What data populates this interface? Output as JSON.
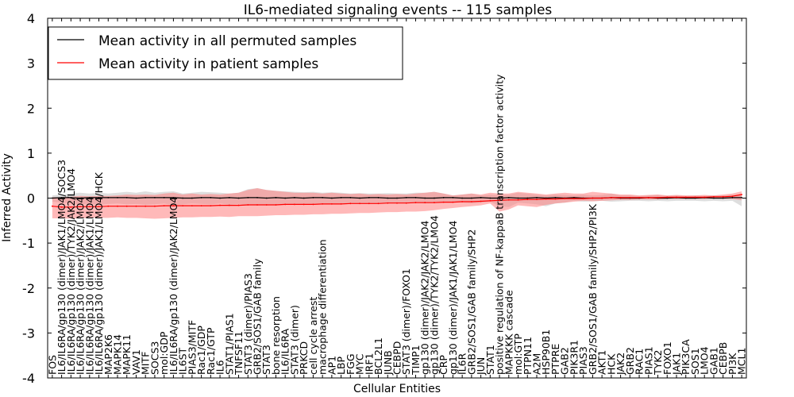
{
  "chart_data": {
    "type": "line",
    "title": "IL6-mediated signaling events -- 115 samples",
    "xlabel": "Cellular Entities",
    "ylabel": "Inferred Activity",
    "ylim": [
      -4,
      4
    ],
    "yticks": [
      -4,
      -3,
      -2,
      -1,
      0,
      1,
      2,
      3,
      4
    ],
    "legend_position": "top-left",
    "categories": [
      "FOS",
      "IL6/IL6RA/gp130 (dimer)/JAK1/LMO4/SOCS3",
      "IL6/IL6RA/gp130 (dimer)/TYK2/JAK2/LMO4",
      "IL6/IL6RA/gp130 (dimer)/JAK2/LMO4",
      "IL6/IL6RA/gp130 (dimer)/JAK1/LMO4",
      "IL6/IL6RA/gp130 (dimer)/JAK1/LMO4/HCK",
      "MAP2K6",
      "MAPK14",
      "MAPK11",
      "VAV1",
      "MITF",
      "SOCS3",
      "mol:GDP",
      "IL6/IL6RA/gp130 (dimer)/JAK2/LMO4",
      "IL6ST",
      "PIAS3/MITF",
      "Rac1/GDP",
      "Rac1/GTP",
      "IL6",
      "STAT1/PIAS1",
      "TNFSF11",
      "STAT3 (dimer)/PIAS3",
      "GRB2/SOS1/GAB family",
      "STAT3",
      "bone resorption",
      "IL6/IL6RA",
      "STAT3 (dimer)",
      "PRKCD",
      "cell cycle arrest",
      "macrophage differentiation",
      "AP1",
      "LBP",
      "FGG",
      "MYC",
      "IRF1",
      "BCL2L1",
      "JUNB",
      "CEBPD",
      "STAT3 (dimer)/FOXO1",
      "TIMP1",
      "gp130 (dimer)/JAK2/JAK2/LMO4",
      "gp130 (dimer)/TYK2/TYK2/LMO4",
      "CRP",
      "gp130 (dimer)/JAK1/JAK1/LMO4",
      "IL6R",
      "GRB2/SOS1/GAB family/SHP2",
      "JUN",
      "STAT1",
      "positive regulation of NF-kappaB transcription factor activity",
      "MAPKKK cascade",
      "mol:GTP",
      "PTPN11",
      "A2M",
      "HSP90B1",
      "PTPRE",
      "GAB2",
      "PIK3R1",
      "PIAS3",
      "GRB2/SOS1/GAB family/SHP2/PI3K",
      "AKT1",
      "HCK",
      "JAK2",
      "GRB2",
      "RAC1",
      "PIAS1",
      "TYK2",
      "FOXO1",
      "JAK1",
      "PIK3CA",
      "SOS1",
      "LMO4",
      "GAB1",
      "CEBPB",
      "PI3K",
      "MCL1"
    ],
    "series": [
      {
        "name": "Mean activity in all permuted samples",
        "color": "#000000",
        "band_color": "#c8c8c8",
        "values": [
          0.0,
          0.01,
          0.01,
          0.0,
          0.01,
          0.01,
          0.01,
          0.01,
          0.01,
          0.0,
          0.01,
          0.01,
          0.01,
          0.01,
          0.0,
          0.0,
          0.01,
          0.01,
          0.0,
          0.01,
          0.0,
          0.01,
          0.01,
          0.0,
          0.01,
          0.0,
          0.01,
          0.0,
          0.01,
          0.01,
          0.0,
          0.01,
          0.01,
          0.0,
          0.01,
          0.01,
          0.0,
          0.0,
          0.01,
          0.01,
          0.0,
          0.0,
          0.01,
          0.01,
          0.0,
          0.0,
          0.01,
          0.0,
          0.0,
          0.01,
          0.0,
          0.0,
          0.01,
          0.0,
          0.01,
          0.0,
          0.01,
          0.0,
          0.0,
          0.0,
          0.01,
          0.0,
          0.0,
          0.0,
          0.01,
          0.0,
          0.0,
          0.01,
          0.0,
          0.0,
          0.01,
          0.0,
          0.0,
          0.01,
          0.01
        ],
        "upper": [
          0.06,
          0.08,
          0.1,
          0.12,
          0.1,
          0.12,
          0.1,
          0.12,
          0.14,
          0.12,
          0.15,
          0.12,
          0.14,
          0.15,
          0.1,
          0.12,
          0.14,
          0.13,
          0.12,
          0.1,
          0.12,
          0.2,
          0.22,
          0.18,
          0.16,
          0.15,
          0.14,
          0.13,
          0.14,
          0.12,
          0.13,
          0.12,
          0.1,
          0.11,
          0.1,
          0.1,
          0.11,
          0.1,
          0.1,
          0.12,
          0.12,
          0.14,
          0.1,
          0.06,
          0.08,
          0.1,
          0.06,
          0.08,
          0.07,
          0.08,
          0.12,
          0.1,
          0.08,
          0.06,
          0.08,
          0.07,
          0.06,
          0.08,
          0.06,
          0.07,
          0.1,
          0.06,
          0.06,
          0.05,
          0.06,
          0.07,
          0.05,
          0.06,
          0.05,
          0.06,
          0.05,
          0.06,
          0.06,
          0.07,
          0.08
        ],
        "lower": [
          -0.08,
          -0.1,
          -0.12,
          -0.14,
          -0.12,
          -0.15,
          -0.13,
          -0.12,
          -0.14,
          -0.13,
          -0.15,
          -0.14,
          -0.12,
          -0.16,
          -0.14,
          -0.12,
          -0.13,
          -0.14,
          -0.12,
          -0.15,
          -0.13,
          -0.16,
          -0.16,
          -0.14,
          -0.15,
          -0.14,
          -0.14,
          -0.13,
          -0.13,
          -0.12,
          -0.13,
          -0.12,
          -0.12,
          -0.11,
          -0.12,
          -0.11,
          -0.1,
          -0.12,
          -0.1,
          -0.1,
          -0.12,
          -0.1,
          -0.08,
          -0.08,
          -0.1,
          -0.12,
          -0.1,
          -0.08,
          -0.18,
          -0.2,
          -0.1,
          -0.12,
          -0.14,
          -0.18,
          -0.12,
          -0.1,
          -0.06,
          -0.08,
          -0.07,
          -0.06,
          -0.08,
          -0.07,
          -0.06,
          -0.06,
          -0.07,
          -0.06,
          -0.07,
          -0.06,
          -0.06,
          -0.06,
          -0.07,
          -0.06,
          -0.07,
          -0.06,
          -0.18
        ]
      },
      {
        "name": "Mean activity in patient samples",
        "color": "#ff0000",
        "band_color": "#ff7f7f",
        "values": [
          -0.18,
          -0.2,
          -0.2,
          -0.19,
          -0.19,
          -0.19,
          -0.18,
          -0.18,
          -0.18,
          -0.18,
          -0.18,
          -0.18,
          -0.17,
          -0.17,
          -0.17,
          -0.17,
          -0.17,
          -0.17,
          -0.16,
          -0.16,
          -0.16,
          -0.15,
          -0.15,
          -0.15,
          -0.15,
          -0.14,
          -0.14,
          -0.14,
          -0.14,
          -0.13,
          -0.13,
          -0.13,
          -0.12,
          -0.12,
          -0.12,
          -0.12,
          -0.11,
          -0.11,
          -0.11,
          -0.1,
          -0.1,
          -0.1,
          -0.09,
          -0.09,
          -0.08,
          -0.08,
          -0.07,
          -0.06,
          -0.05,
          -0.04,
          -0.04,
          -0.03,
          -0.03,
          -0.02,
          -0.02,
          -0.01,
          -0.01,
          -0.01,
          0.0,
          0.0,
          0.01,
          0.01,
          0.01,
          0.01,
          0.01,
          0.01,
          0.02,
          0.02,
          0.02,
          0.02,
          0.02,
          0.03,
          0.03,
          0.04,
          0.08
        ],
        "upper": [
          0.02,
          0.02,
          0.03,
          0.05,
          0.04,
          0.05,
          0.05,
          0.06,
          0.08,
          0.07,
          0.08,
          0.07,
          0.1,
          0.12,
          0.08,
          0.1,
          0.08,
          0.09,
          0.08,
          0.1,
          0.12,
          0.18,
          0.22,
          0.18,
          0.16,
          0.14,
          0.12,
          0.12,
          0.12,
          0.1,
          0.12,
          0.1,
          0.09,
          0.1,
          0.08,
          0.09,
          0.08,
          0.09,
          0.08,
          0.1,
          0.12,
          0.14,
          0.1,
          0.06,
          0.08,
          0.1,
          0.08,
          0.12,
          0.1,
          0.1,
          0.14,
          0.12,
          0.1,
          0.08,
          0.1,
          0.12,
          0.1,
          0.1,
          0.14,
          0.12,
          0.1,
          0.08,
          0.08,
          0.06,
          0.07,
          0.08,
          0.06,
          0.07,
          0.06,
          0.06,
          0.07,
          0.06,
          0.08,
          0.1,
          0.15
        ],
        "lower": [
          -0.45,
          -0.45,
          -0.46,
          -0.45,
          -0.44,
          -0.44,
          -0.44,
          -0.43,
          -0.44,
          -0.44,
          -0.45,
          -0.46,
          -0.45,
          -0.44,
          -0.43,
          -0.43,
          -0.42,
          -0.42,
          -0.41,
          -0.42,
          -0.4,
          -0.4,
          -0.4,
          -0.39,
          -0.38,
          -0.38,
          -0.37,
          -0.37,
          -0.36,
          -0.36,
          -0.35,
          -0.35,
          -0.34,
          -0.33,
          -0.33,
          -0.32,
          -0.31,
          -0.31,
          -0.3,
          -0.3,
          -0.29,
          -0.27,
          -0.24,
          -0.22,
          -0.2,
          -0.18,
          -0.16,
          -0.12,
          -0.3,
          -0.25,
          -0.16,
          -0.18,
          -0.2,
          -0.15,
          -0.12,
          -0.1,
          -0.08,
          -0.06,
          -0.07,
          -0.06,
          -0.05,
          -0.04,
          -0.04,
          -0.03,
          -0.03,
          -0.03,
          -0.02,
          -0.02,
          -0.02,
          -0.02,
          -0.02,
          -0.01,
          -0.01,
          -0.02,
          -0.05
        ]
      }
    ]
  }
}
